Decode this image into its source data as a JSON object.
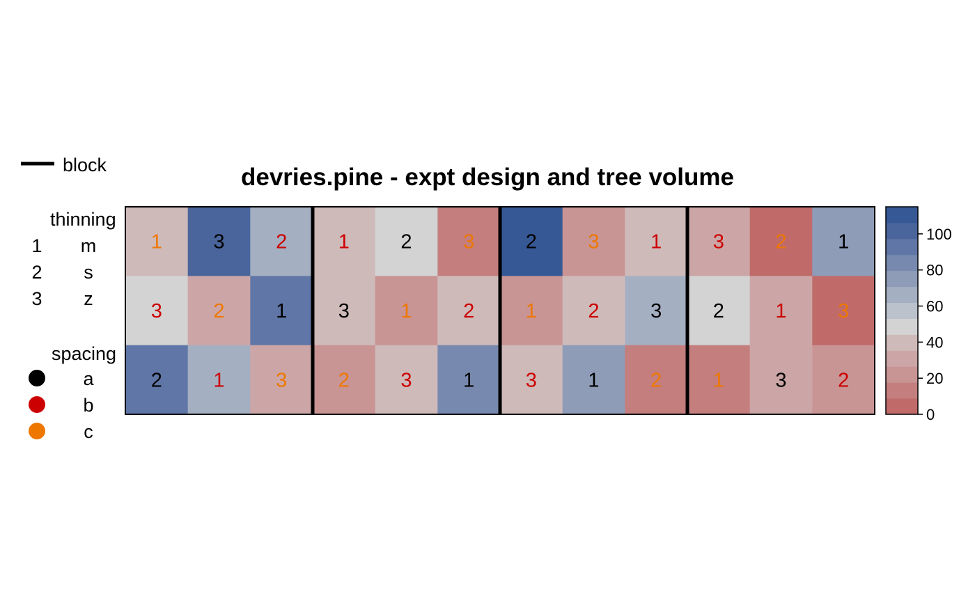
{
  "chart_data": {
    "type": "heatmap",
    "title": "devries.pine - expt design and tree volume",
    "legend": {
      "block_label": "block",
      "thinning": {
        "title": "thinning",
        "entries": [
          {
            "code": "1",
            "level": "m"
          },
          {
            "code": "2",
            "level": "s"
          },
          {
            "code": "3",
            "level": "z"
          }
        ]
      },
      "spacing": {
        "title": "spacing",
        "entries": [
          {
            "level": "a",
            "color": "#000000"
          },
          {
            "level": "b",
            "color": "#cc0000"
          },
          {
            "level": "c",
            "color": "#ee7700"
          }
        ]
      }
    },
    "colorbar": {
      "ticks": [
        0,
        20,
        40,
        60,
        80,
        100
      ],
      "range": [
        0,
        115
      ],
      "steps": [
        "#c06a6a",
        "#c47e7e",
        "#c99494",
        "#cca6a6",
        "#cfbaba",
        "#d3d3d3",
        "#bcc2cc",
        "#a5afc2",
        "#8e9cb8",
        "#7789ae",
        "#6076a6",
        "#4a659c",
        "#365996"
      ]
    },
    "blocks": 4,
    "plots_per_block": 3,
    "grid": [
      [
        {
          "thinning": "1",
          "spacing": "c",
          "volume": 37
        },
        {
          "thinning": "3",
          "spacing": "a",
          "volume": 106
        },
        {
          "thinning": "2",
          "spacing": "b",
          "volume": 62
        },
        {
          "thinning": "1",
          "spacing": "b",
          "volume": 40
        },
        {
          "thinning": "2",
          "spacing": "a",
          "volume": 52
        },
        {
          "thinning": "3",
          "spacing": "c",
          "volume": 13
        },
        {
          "thinning": "2",
          "spacing": "a",
          "volume": 112
        },
        {
          "thinning": "3",
          "spacing": "c",
          "volume": 23
        },
        {
          "thinning": "1",
          "spacing": "b",
          "volume": 38
        },
        {
          "thinning": "3",
          "spacing": "b",
          "volume": 33
        },
        {
          "thinning": "2",
          "spacing": "c",
          "volume": 4
        },
        {
          "thinning": "1",
          "spacing": "a",
          "volume": 76
        }
      ],
      [
        {
          "thinning": "3",
          "spacing": "b",
          "volume": 52
        },
        {
          "thinning": "2",
          "spacing": "c",
          "volume": 32
        },
        {
          "thinning": "1",
          "spacing": "a",
          "volume": 96
        },
        {
          "thinning": "3",
          "spacing": "a",
          "volume": 40
        },
        {
          "thinning": "1",
          "spacing": "c",
          "volume": 22
        },
        {
          "thinning": "2",
          "spacing": "b",
          "volume": 39
        },
        {
          "thinning": "1",
          "spacing": "c",
          "volume": 22
        },
        {
          "thinning": "2",
          "spacing": "b",
          "volume": 38
        },
        {
          "thinning": "3",
          "spacing": "a",
          "volume": 62
        },
        {
          "thinning": "2",
          "spacing": "a",
          "volume": 53
        },
        {
          "thinning": "1",
          "spacing": "b",
          "volume": 32
        },
        {
          "thinning": "3",
          "spacing": "c",
          "volume": 6
        }
      ],
      [
        {
          "thinning": "2",
          "spacing": "a",
          "volume": 96
        },
        {
          "thinning": "1",
          "spacing": "b",
          "volume": 62
        },
        {
          "thinning": "3",
          "spacing": "c",
          "volume": 32
        },
        {
          "thinning": "2",
          "spacing": "c",
          "volume": 24
        },
        {
          "thinning": "3",
          "spacing": "b",
          "volume": 38
        },
        {
          "thinning": "1",
          "spacing": "a",
          "volume": 84
        },
        {
          "thinning": "3",
          "spacing": "b",
          "volume": 40
        },
        {
          "thinning": "1",
          "spacing": "a",
          "volume": 74
        },
        {
          "thinning": "2",
          "spacing": "c",
          "volume": 14
        },
        {
          "thinning": "1",
          "spacing": "c",
          "volume": 14
        },
        {
          "thinning": "3",
          "spacing": "a",
          "volume": 32
        },
        {
          "thinning": "2",
          "spacing": "b",
          "volume": 24
        }
      ]
    ]
  }
}
